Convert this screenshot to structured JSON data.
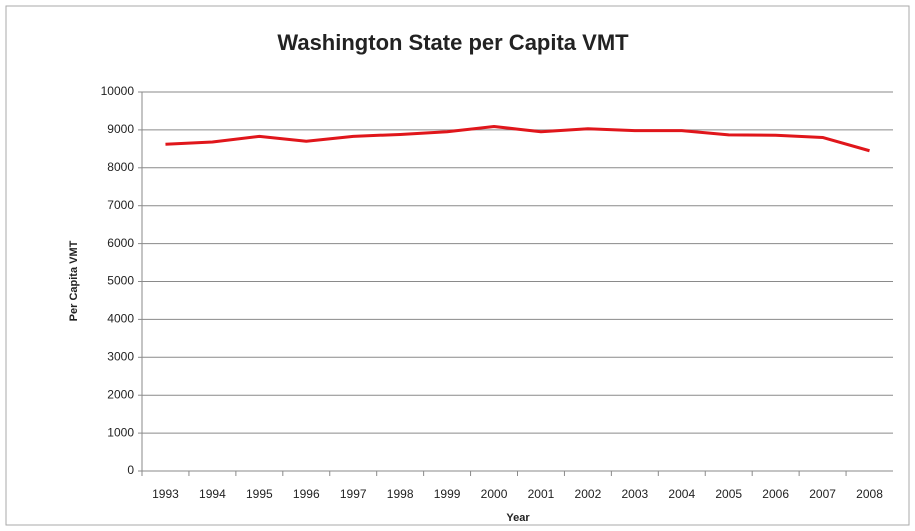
{
  "chart_data": {
    "type": "line",
    "title": "Washington State per Capita VMT",
    "x_label": "Year",
    "y_label": "Per Capita VMT",
    "categories": [
      "1993",
      "1994",
      "1995",
      "1996",
      "1997",
      "1998",
      "1999",
      "2000",
      "2001",
      "2002",
      "2003",
      "2004",
      "2005",
      "2006",
      "2007",
      "2008"
    ],
    "series": [
      {
        "name": "Per Capita VMT",
        "color": "#e0161b",
        "values": [
          8620,
          8680,
          8830,
          8700,
          8830,
          8880,
          8950,
          9090,
          8950,
          9030,
          8980,
          8980,
          8870,
          8860,
          8800,
          8450
        ]
      }
    ],
    "ylim": [
      0,
      10000
    ],
    "yticks": [
      0,
      1000,
      2000,
      3000,
      4000,
      5000,
      6000,
      7000,
      8000,
      9000,
      10000
    ],
    "grid": true
  }
}
